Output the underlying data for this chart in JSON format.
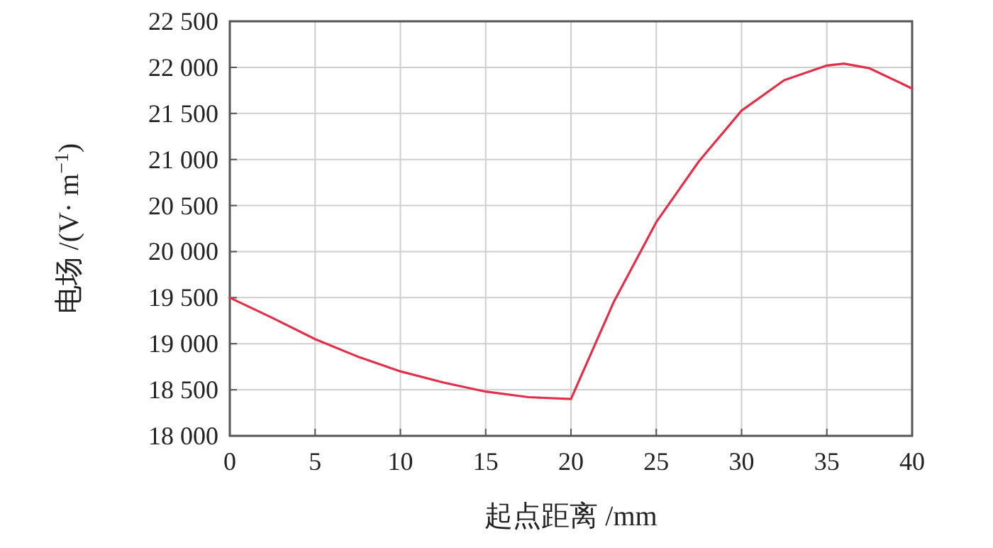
{
  "chart_data": {
    "type": "line",
    "xlabel": "起点距离 /mm",
    "ylabel": "电场 /(V· m$^{−1}$)",
    "xlim": [
      0,
      40
    ],
    "xticks": [
      0,
      5,
      10,
      15,
      20,
      25,
      30,
      35,
      40
    ],
    "ylim": [
      18000,
      22500
    ],
    "yticks": [
      {
        "value": 18000,
        "label": "18 000"
      },
      {
        "value": 18500,
        "label": "18 500"
      },
      {
        "value": 19000,
        "label": "19 000"
      },
      {
        "value": 19500,
        "label": "19 500"
      },
      {
        "value": 20000,
        "label": "20 000"
      },
      {
        "value": 20500,
        "label": "20 500"
      },
      {
        "value": 21000,
        "label": "21 000"
      },
      {
        "value": 21500,
        "label": "21 500"
      },
      {
        "value": 22000,
        "label": "22 000"
      },
      {
        "value": 22500,
        "label": "22 500"
      }
    ],
    "grid": true,
    "marker": "none",
    "line_style": "solid",
    "series": [
      {
        "color": "#e0304a",
        "x": [
          0,
          2.5,
          5,
          7.5,
          10,
          12.5,
          15,
          17.5,
          20,
          22.5,
          25,
          27.5,
          30,
          32.5,
          35,
          36,
          37.5,
          40
        ],
        "values": [
          19500,
          19280,
          19050,
          18860,
          18700,
          18580,
          18480,
          18420,
          18400,
          19450,
          20320,
          20980,
          21530,
          21860,
          22020,
          22040,
          21990,
          21770
        ]
      }
    ]
  }
}
